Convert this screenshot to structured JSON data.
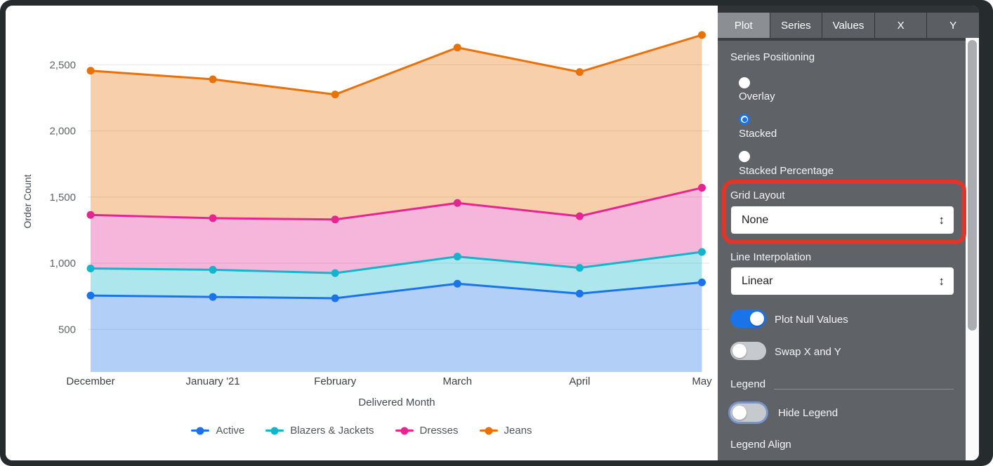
{
  "panel": {
    "tabs": [
      {
        "label": "Plot",
        "active": true
      },
      {
        "label": "Series",
        "active": false
      },
      {
        "label": "Values",
        "active": false
      },
      {
        "label": "X",
        "active": false
      },
      {
        "label": "Y",
        "active": false
      }
    ],
    "series_positioning": {
      "label": "Series Positioning",
      "options": [
        {
          "label": "Overlay",
          "selected": false
        },
        {
          "label": "Stacked",
          "selected": true
        },
        {
          "label": "Stacked Percentage",
          "selected": false
        }
      ]
    },
    "grid_layout": {
      "label": "Grid Layout",
      "value": "None"
    },
    "line_interpolation": {
      "label": "Line Interpolation",
      "value": "Linear"
    },
    "plot_null_values": {
      "label": "Plot Null Values",
      "on": true
    },
    "swap_x_and_y": {
      "label": "Swap X and Y",
      "on": false
    },
    "legend_section": {
      "label": "Legend"
    },
    "hide_legend": {
      "label": "Hide Legend",
      "on": false
    },
    "legend_align": {
      "label": "Legend Align"
    }
  },
  "annotation": {
    "type": "highlight-box",
    "color": "#e1352a",
    "target": "Grid Layout"
  },
  "chart_data": {
    "type": "area",
    "stacking": "stacked",
    "title": "",
    "xlabel": "Delivered Month",
    "ylabel": "Order Count",
    "categories": [
      "December",
      "January '21",
      "February",
      "March",
      "April",
      "May"
    ],
    "series": [
      {
        "name": "Active",
        "color": "#1a73e8",
        "values": [
          755,
          745,
          735,
          845,
          770,
          855
        ]
      },
      {
        "name": "Blazers & Jackets",
        "color": "#12b5cb",
        "values": [
          205,
          205,
          190,
          205,
          195,
          230
        ]
      },
      {
        "name": "Dresses",
        "color": "#e52592",
        "values": [
          405,
          390,
          405,
          405,
          390,
          485
        ]
      },
      {
        "name": "Jeans",
        "color": "#e8710a",
        "values": [
          1090,
          1050,
          945,
          1175,
          1090,
          1155
        ]
      }
    ],
    "stacked_tops": [
      [
        755,
        745,
        735,
        845,
        770,
        855
      ],
      [
        960,
        950,
        925,
        1050,
        965,
        1085
      ],
      [
        1365,
        1340,
        1330,
        1455,
        1355,
        1570
      ],
      [
        2455,
        2390,
        2275,
        2630,
        2445,
        2725
      ]
    ],
    "y_ticks": [
      500,
      1000,
      1500,
      2000,
      2500
    ],
    "y_tick_labels": [
      "500",
      "1,000",
      "1,500",
      "2,000",
      "2,500"
    ],
    "grid": "horizontal",
    "legend_position": "bottom"
  }
}
